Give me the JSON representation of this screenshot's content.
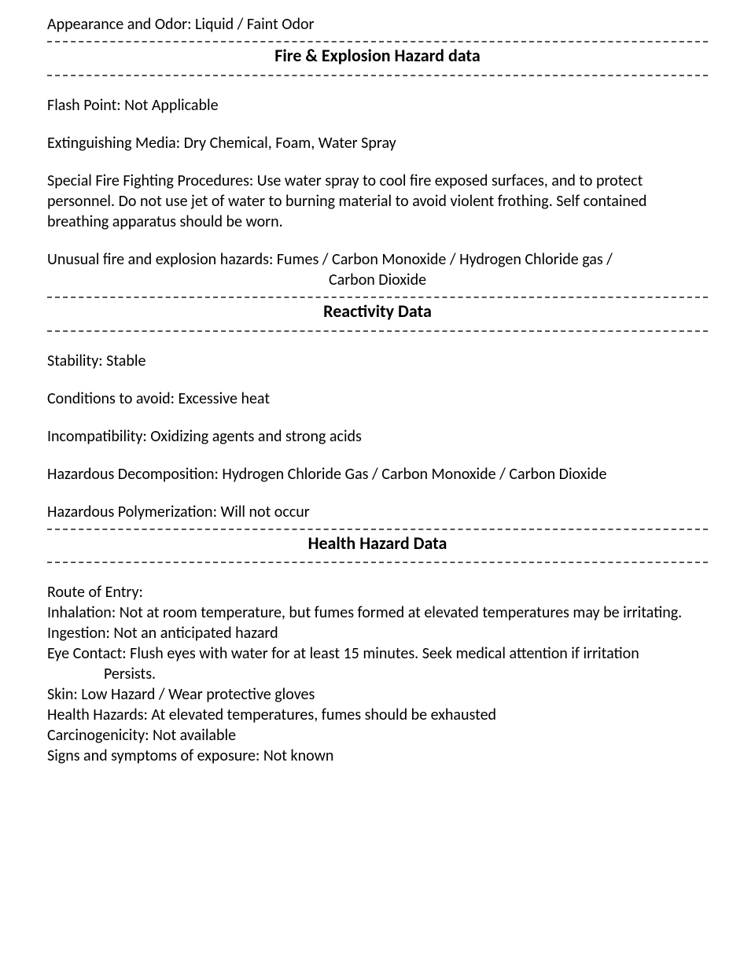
{
  "colors": {
    "text": "#000000",
    "background": "#ffffff",
    "divider": "#555555"
  },
  "typography": {
    "body_font": "Calibri",
    "body_size_pt": 15,
    "heading_size_pt": 17,
    "heading_weight": "bold"
  },
  "appearance_line": "Appearance and Odor: Liquid / Faint Odor",
  "sections": {
    "fire": {
      "heading": "Fire & Explosion Hazard data",
      "flash_point": "Flash Point: Not Applicable",
      "extinguishing_media": "Extinguishing Media: Dry Chemical, Foam, Water Spray",
      "special_procedures": "Special Fire Fighting Procedures: Use water spray to cool fire exposed surfaces, and to protect personnel. Do not use jet of water to burning material to avoid violent frothing. Self contained breathing apparatus should be worn.",
      "unusual_hazards_l1": "Unusual fire and explosion hazards: Fumes / Carbon Monoxide / Hydrogen Chloride gas /",
      "unusual_hazards_l2": "Carbon Dioxide"
    },
    "reactivity": {
      "heading": "Reactivity Data",
      "stability": "Stability: Stable",
      "conditions_to_avoid": "Conditions to avoid: Excessive heat",
      "incompatibility": "Incompatibility: Oxidizing agents and strong acids",
      "hazardous_decomposition": "Hazardous Decomposition: Hydrogen Chloride Gas / Carbon Monoxide / Carbon Dioxide",
      "hazardous_polymerization": "Hazardous Polymerization: Will not occur"
    },
    "health": {
      "heading": "Health Hazard Data",
      "route_of_entry_label": "Route of Entry:",
      "inhalation": "Inhalation: Not at room temperature, but fumes formed at elevated temperatures may be irritating.",
      "ingestion": "Ingestion: Not an anticipated hazard",
      "eye_contact_l1": "Eye Contact: Flush eyes with water for at least 15 minutes. Seek medical attention if irritation",
      "eye_contact_l2": "Persists.",
      "skin": "Skin: Low Hazard / Wear protective gloves",
      "health_hazards": "Health Hazards: At elevated temperatures, fumes should be exhausted",
      "carcinogenicity": "Carcinogenicity: Not available",
      "signs_symptoms": "Signs and symptoms of exposure: Not known"
    }
  }
}
